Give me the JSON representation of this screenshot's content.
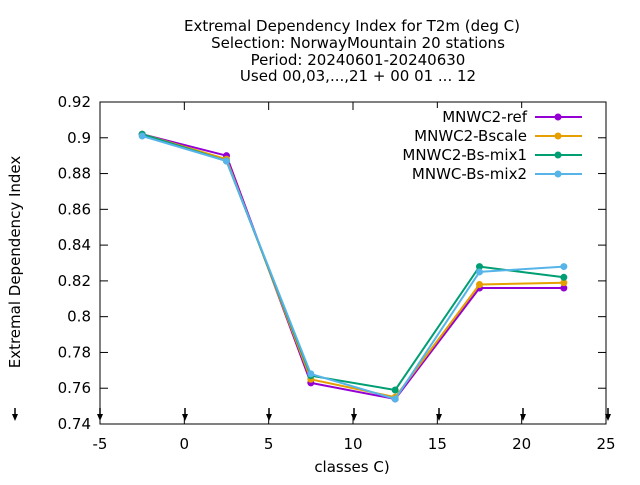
{
  "chart_data": {
    "type": "line",
    "title_lines": [
      "Extremal Dependency Index  for T2m (deg C)",
      "Selection: NorwayMountain     20 stations",
      "Period: 20240601-20240630",
      "Used 00,03,...,21 + 00 01 ... 12"
    ],
    "xlabel": "classes C)",
    "ylabel": "Extremal Dependency Index",
    "xlim": [
      -5,
      25
    ],
    "ylim": [
      0.74,
      0.92
    ],
    "x_ticks": [
      -5,
      0,
      5,
      10,
      15,
      20,
      25
    ],
    "x_tick_labels": [
      "-5",
      "0",
      "5",
      "10",
      "15",
      "20",
      "25"
    ],
    "y_ticks": [
      0.74,
      0.76,
      0.78,
      0.8,
      0.82,
      0.84,
      0.86,
      0.88,
      0.9,
      0.92
    ],
    "y_tick_labels": [
      "0.74",
      "0.76",
      "0.78",
      "0.8",
      "0.82",
      "0.84",
      "0.86",
      "0.88",
      "0.9",
      "0.92"
    ],
    "grid": false,
    "legend_position": "top-right",
    "series": [
      {
        "name": "MNWC2-ref",
        "color": "#9400d3",
        "x": [
          -2.5,
          2.5,
          7.5,
          12.5,
          17.5,
          22.5
        ],
        "values": [
          0.902,
          0.89,
          0.763,
          0.754,
          0.816,
          0.816
        ]
      },
      {
        "name": "MNWC2-Bscale",
        "color": "#e69f00",
        "x": [
          -2.5,
          2.5,
          7.5,
          12.5,
          17.5,
          22.5
        ],
        "values": [
          0.902,
          0.888,
          0.765,
          0.755,
          0.818,
          0.819
        ]
      },
      {
        "name": "MNWC2-Bs-mix1",
        "color": "#009e73",
        "x": [
          -2.5,
          2.5,
          7.5,
          12.5,
          17.5,
          22.5
        ],
        "values": [
          0.902,
          0.887,
          0.767,
          0.759,
          0.828,
          0.822
        ]
      },
      {
        "name": "MNWC-Bs-mix2",
        "color": "#56b4e9",
        "x": [
          -2.5,
          2.5,
          7.5,
          12.5,
          17.5,
          22.5
        ],
        "values": [
          0.901,
          0.887,
          0.768,
          0.754,
          0.825,
          0.828
        ]
      }
    ]
  }
}
